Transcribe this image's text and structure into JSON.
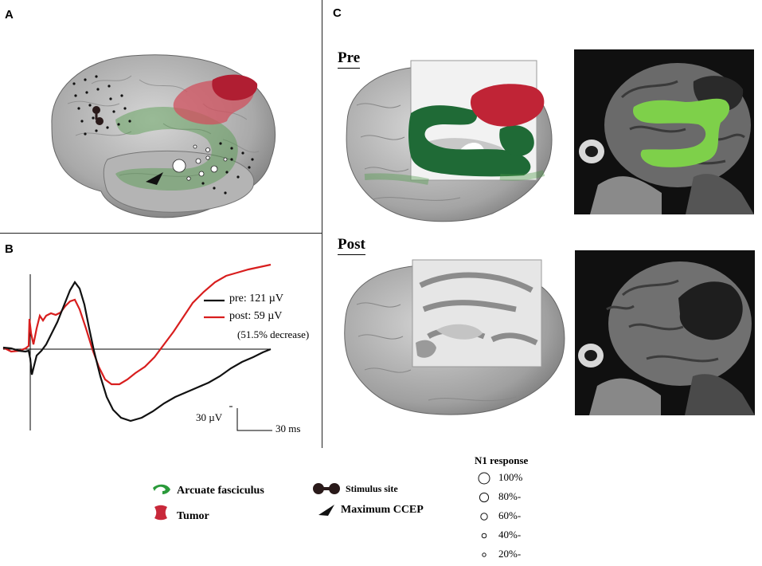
{
  "panels": {
    "a": "A",
    "b": "B",
    "c": "C"
  },
  "panel_b": {
    "pre_label": "pre: 121 µV",
    "post_label": "post: 59 µV",
    "change_label": "(51.5% decrease)",
    "scale_voltage": "30 µV",
    "scale_time": "30 ms",
    "colors": {
      "pre": "#111111",
      "post": "#d81e1e"
    }
  },
  "panel_c": {
    "pre_heading": "Pre",
    "post_heading": "Post"
  },
  "legend": {
    "arcuate": "Arcuate fasciculus",
    "tumor": "Tumor",
    "stimulus": "Stimulus site",
    "ccep": "Maximum CCEP",
    "colors": {
      "arcuate": "#2a9a3a",
      "tumor": "#c8283a",
      "stimulus": "#2a1a1a"
    }
  },
  "n1": {
    "title": "N1 response",
    "levels": [
      {
        "label": "100%",
        "fraction": 1.0
      },
      {
        "label": "80%-",
        "fraction": 0.8
      },
      {
        "label": "60%-",
        "fraction": 0.6
      },
      {
        "label": "40%-",
        "fraction": 0.4
      },
      {
        "label": "20%-",
        "fraction": 0.2
      }
    ]
  }
}
